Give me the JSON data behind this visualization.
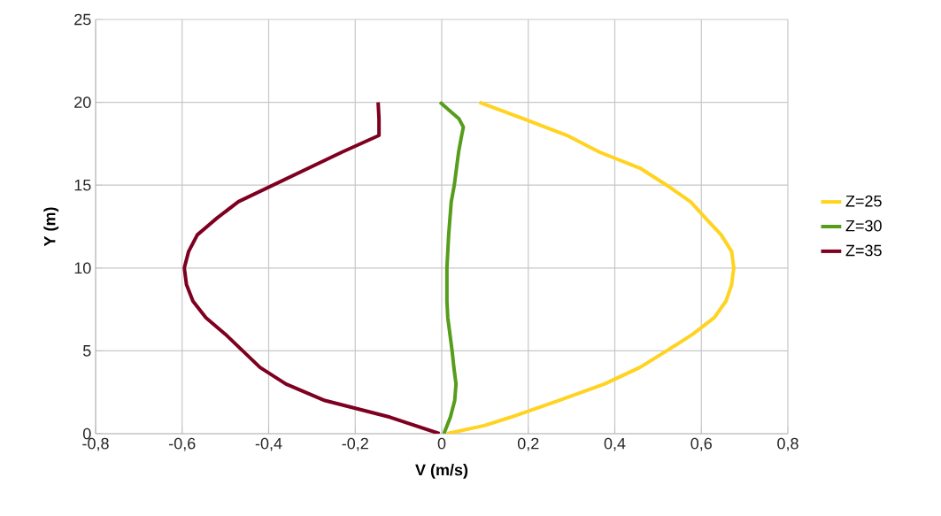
{
  "chart_data": {
    "type": "line",
    "xlabel": "V (m/s)",
    "ylabel": "Y (m)",
    "xlim": [
      -0.8,
      0.8
    ],
    "ylim": [
      0,
      25
    ],
    "xticks": [
      {
        "value": -0.8,
        "label": "-0,8"
      },
      {
        "value": -0.6,
        "label": "-0,6"
      },
      {
        "value": -0.4,
        "label": "-0,4"
      },
      {
        "value": -0.2,
        "label": "-0,2"
      },
      {
        "value": 0,
        "label": "0"
      },
      {
        "value": 0.2,
        "label": "0,2"
      },
      {
        "value": 0.4,
        "label": "0,4"
      },
      {
        "value": 0.6,
        "label": "0,6"
      },
      {
        "value": 0.8,
        "label": "0,8"
      }
    ],
    "yticks": [
      0,
      5,
      10,
      15,
      20,
      25
    ],
    "grid": true,
    "legend": "right",
    "marker": "none",
    "series": [
      {
        "name": "Z=25",
        "color": "#ffd320",
        "x": [
          0.012,
          0.1,
          0.16,
          0.27,
          0.376,
          0.458,
          0.52,
          0.58,
          0.63,
          0.657,
          0.67,
          0.675,
          0.67,
          0.646,
          0.61,
          0.575,
          0.52,
          0.46,
          0.364,
          0.29,
          0.19,
          0.087
        ],
        "values": [
          0,
          0.5,
          1,
          2,
          3,
          4,
          5,
          6,
          7,
          8,
          9,
          10,
          11,
          12,
          13,
          14,
          15,
          16,
          17,
          18,
          19,
          20
        ]
      },
      {
        "name": "Z=30",
        "color": "#579d1c",
        "x": [
          0.005,
          0.02,
          0.03,
          0.033,
          0.028,
          0.024,
          0.019,
          0.014,
          0.012,
          0.012,
          0.016,
          0.022,
          0.029,
          0.034,
          0.039,
          0.046,
          0.05,
          0.04,
          -0.004
        ],
        "values": [
          0,
          1,
          2,
          3,
          4,
          5,
          6,
          7,
          8,
          10,
          12,
          14,
          15,
          16,
          17,
          18,
          18.5,
          19,
          20
        ]
      },
      {
        "name": "Z=35",
        "color": "#7e0021",
        "x": [
          -0.005,
          -0.12,
          -0.27,
          -0.36,
          -0.42,
          -0.46,
          -0.5,
          -0.545,
          -0.575,
          -0.59,
          -0.595,
          -0.585,
          -0.565,
          -0.52,
          -0.47,
          -0.39,
          -0.31,
          -0.23,
          -0.145,
          -0.145,
          -0.147
        ],
        "values": [
          0,
          1,
          2,
          3,
          4,
          5,
          6,
          7,
          8,
          9,
          10,
          11,
          12,
          13,
          14,
          15,
          16,
          17,
          18,
          19,
          20
        ]
      }
    ]
  }
}
